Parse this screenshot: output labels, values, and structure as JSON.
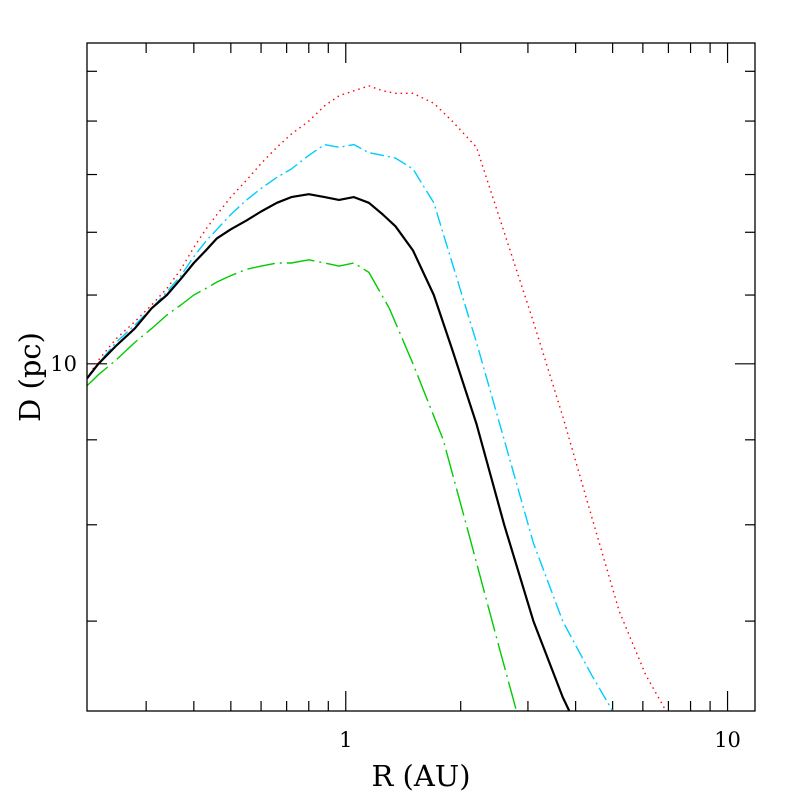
{
  "chart_data": {
    "type": "line",
    "xlabel": "R (AU)",
    "ylabel": "D (pc)",
    "xscale": "log",
    "yscale": "log",
    "xlim": [
      0.21,
      11.8
    ],
    "ylim": [
      6.18,
      15.6
    ],
    "x_tick_labels": [
      {
        "value": 1,
        "label": "1"
      },
      {
        "value": 10,
        "label": "10"
      }
    ],
    "y_tick_labels": [
      {
        "value": 10,
        "label": "10"
      }
    ],
    "grid": false,
    "legend": "none",
    "series": [
      {
        "color": "#ff0000",
        "style": "dotted",
        "x": [
          0.21,
          0.225,
          0.25,
          0.28,
          0.31,
          0.34,
          0.37,
          0.4,
          0.43,
          0.46,
          0.5,
          0.55,
          0.6,
          0.66,
          0.72,
          0.8,
          0.88,
          0.96,
          1.05,
          1.15,
          1.25,
          1.35,
          1.5,
          1.7,
          1.9,
          2.2,
          2.6,
          3.1,
          3.7,
          4.4,
          5.2,
          6.1,
          6.9
        ],
        "y": [
          9.8,
          10.05,
          10.35,
          10.6,
          10.85,
          11.1,
          11.4,
          11.75,
          12.05,
          12.3,
          12.6,
          12.9,
          13.2,
          13.5,
          13.75,
          14.0,
          14.3,
          14.5,
          14.6,
          14.7,
          14.6,
          14.55,
          14.55,
          14.35,
          14.0,
          13.5,
          12.0,
          10.6,
          9.3,
          8.1,
          7.1,
          6.5,
          6.18
        ]
      },
      {
        "color": "#00ccff",
        "style": "dash-dot",
        "x": [
          0.21,
          0.225,
          0.25,
          0.28,
          0.31,
          0.34,
          0.37,
          0.4,
          0.43,
          0.46,
          0.5,
          0.55,
          0.6,
          0.66,
          0.72,
          0.8,
          0.88,
          0.96,
          1.05,
          1.15,
          1.25,
          1.35,
          1.5,
          1.7,
          1.9,
          2.2,
          2.6,
          3.1,
          3.7,
          4.4,
          5.0
        ],
        "y": [
          9.8,
          10.0,
          10.3,
          10.55,
          10.8,
          11.05,
          11.3,
          11.6,
          11.85,
          12.05,
          12.3,
          12.55,
          12.75,
          12.95,
          13.1,
          13.35,
          13.55,
          13.5,
          13.55,
          13.4,
          13.35,
          13.3,
          13.1,
          12.5,
          11.5,
          10.3,
          9.0,
          7.8,
          7.0,
          6.5,
          6.18
        ]
      },
      {
        "color": "#000000",
        "style": "solid",
        "x": [
          0.21,
          0.225,
          0.25,
          0.28,
          0.31,
          0.34,
          0.37,
          0.4,
          0.43,
          0.46,
          0.5,
          0.55,
          0.6,
          0.66,
          0.72,
          0.8,
          0.88,
          0.96,
          1.05,
          1.15,
          1.25,
          1.35,
          1.5,
          1.7,
          1.9,
          2.2,
          2.6,
          3.1,
          3.7,
          3.85
        ],
        "y": [
          9.8,
          10.0,
          10.25,
          10.5,
          10.8,
          11.0,
          11.25,
          11.5,
          11.7,
          11.9,
          12.05,
          12.2,
          12.35,
          12.5,
          12.6,
          12.65,
          12.6,
          12.55,
          12.6,
          12.5,
          12.3,
          12.1,
          11.7,
          11.0,
          10.2,
          9.2,
          8.0,
          7.0,
          6.3,
          6.18
        ]
      },
      {
        "color": "#00cc00",
        "style": "long-dash-dot",
        "x": [
          0.21,
          0.225,
          0.25,
          0.28,
          0.31,
          0.34,
          0.37,
          0.4,
          0.43,
          0.46,
          0.5,
          0.55,
          0.6,
          0.66,
          0.72,
          0.8,
          0.88,
          0.96,
          1.05,
          1.15,
          1.3,
          1.5,
          1.8,
          2.1,
          2.5,
          2.8
        ],
        "y": [
          9.7,
          9.85,
          10.05,
          10.3,
          10.5,
          10.7,
          10.85,
          11.0,
          11.1,
          11.2,
          11.3,
          11.4,
          11.45,
          11.5,
          11.5,
          11.55,
          11.5,
          11.45,
          11.5,
          11.35,
          10.8,
          10.0,
          9.0,
          7.9,
          6.8,
          6.18
        ]
      }
    ]
  }
}
